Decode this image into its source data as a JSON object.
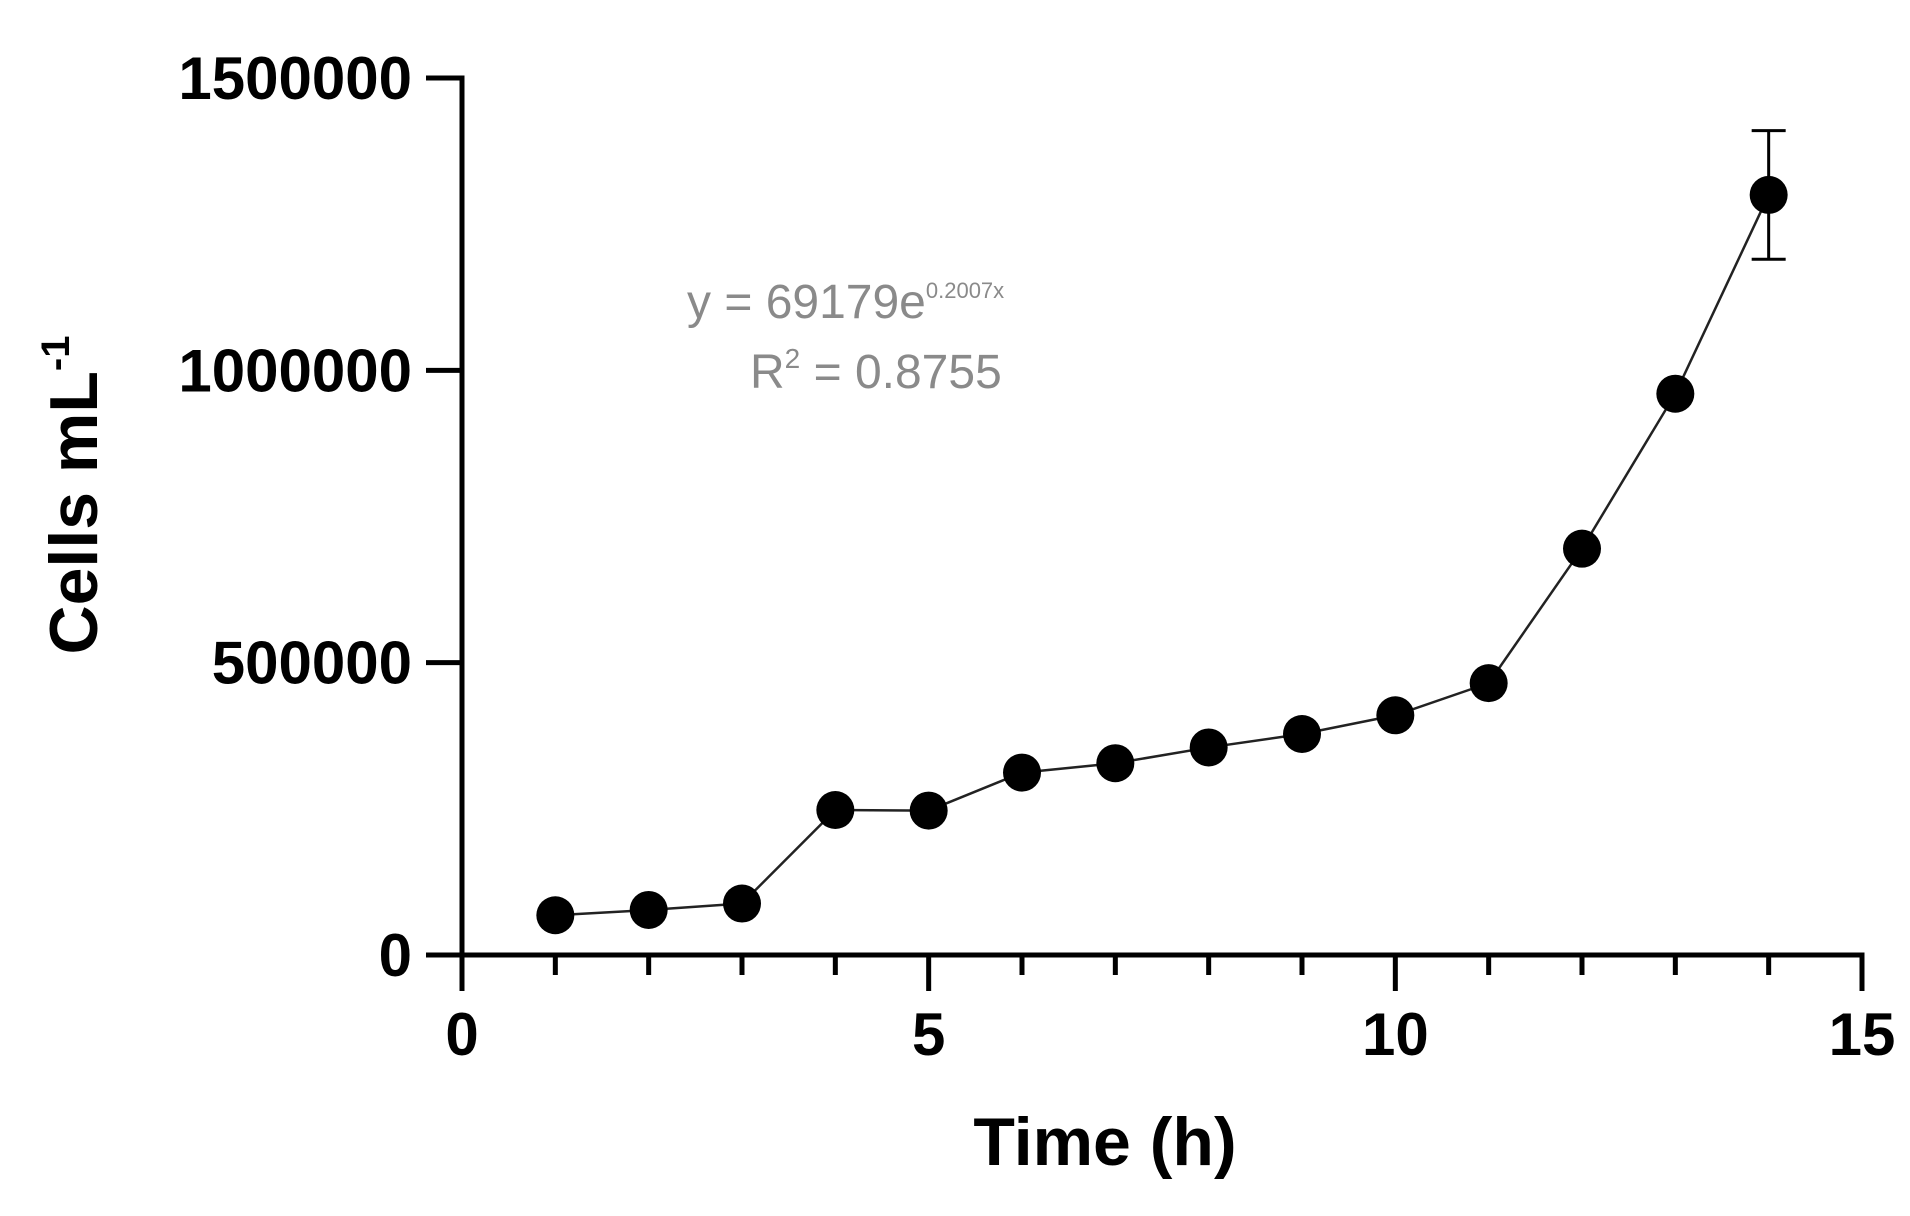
{
  "chart_data": {
    "type": "line",
    "xlabel": "Time (h)",
    "ylabel": {
      "text": "Cells mL",
      "superscript": "-1"
    },
    "xlim": [
      0,
      15
    ],
    "ylim": [
      0,
      1500000
    ],
    "xticks": [
      0,
      5,
      10,
      15
    ],
    "yticks": [
      0,
      500000,
      1000000,
      1500000
    ],
    "xtick_labels": [
      "0",
      "5",
      "10",
      "15"
    ],
    "ytick_labels": [
      "0",
      "500000",
      "1000000",
      "1500000"
    ],
    "grid": false,
    "series": [
      {
        "marker": "circle",
        "color": "#000000",
        "x": [
          1,
          2,
          3,
          4,
          5,
          6,
          7,
          8,
          9,
          10,
          11,
          12,
          13,
          14
        ],
        "y": [
          68000,
          77000,
          88000,
          248000,
          247000,
          312000,
          328000,
          355000,
          378000,
          410000,
          465000,
          695000,
          960000,
          1300000
        ],
        "error": [
          null,
          null,
          null,
          null,
          null,
          null,
          null,
          null,
          null,
          null,
          null,
          null,
          null,
          110000
        ]
      }
    ],
    "annotation": {
      "equation_prefix": "y = 69179e",
      "equation_exponent": "0.2007x",
      "r2_prefix": "R",
      "r2_superscript": "2",
      "r2_value": " = 0.8755",
      "color": "#8a8a8a"
    }
  }
}
